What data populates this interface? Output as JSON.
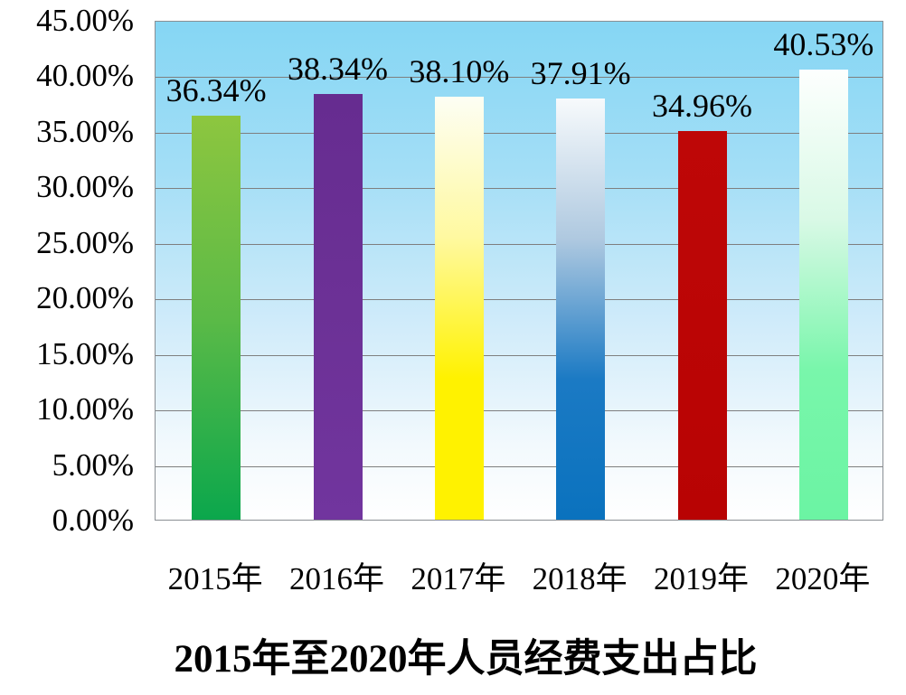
{
  "chart_data": {
    "type": "bar",
    "title": "2015年至2020年人员经费支出占比",
    "categories": [
      "2015年",
      "2016年",
      "2017年",
      "2018年",
      "2019年",
      "2020年"
    ],
    "values": [
      36.34,
      38.34,
      38.1,
      37.91,
      34.96,
      40.53
    ],
    "data_labels": [
      "36.34%",
      "38.34%",
      "38.10%",
      "37.91%",
      "34.96%",
      "40.53%"
    ],
    "xlabel": "",
    "ylabel": "",
    "ylim": [
      0,
      45
    ],
    "ytick_step": 5,
    "ytick_labels": [
      "45.00%",
      "40.00%",
      "35.00%",
      "30.00%",
      "25.00%",
      "20.00%",
      "15.00%",
      "10.00%",
      "5.00%",
      "0.00%"
    ],
    "grid": true,
    "legend_position": "none",
    "plot_background_gradient": [
      "#85d6f4",
      "#ffffff"
    ],
    "gridline_color": "#7f7f7f",
    "axis_border_color": "#8a8f94",
    "text_color": "#000000",
    "bar_gradients": [
      [
        "#8dc63f",
        "#5bba47",
        "#0ba74c"
      ],
      [
        "#662c90",
        "#6c3196",
        "#71359e"
      ],
      [
        "#fdfef4",
        "#fff9a0",
        "#fff200",
        "#fff200"
      ],
      [
        "#f7fafc",
        "#afc9e0",
        "#1b7ac4",
        "#0a72be"
      ],
      [
        "#be0707",
        "#bb0505",
        "#b80303"
      ],
      [
        "#fdfffe",
        "#d9f9e6",
        "#79f6ab",
        "#6bf4a3"
      ]
    ]
  }
}
